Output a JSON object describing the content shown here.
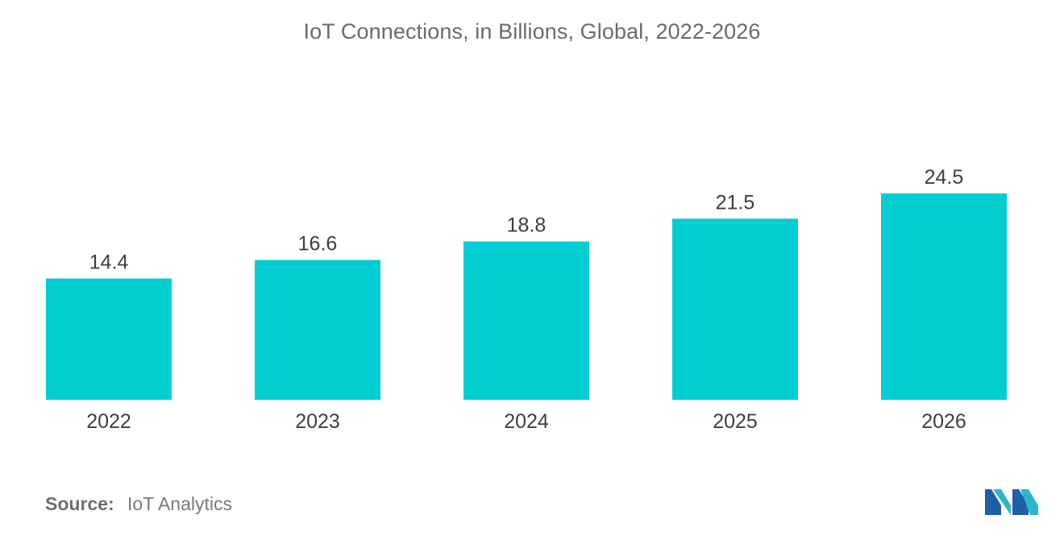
{
  "chart_data": {
    "type": "bar",
    "title": "IoT Connections, in Billions, Global, 2022-2026",
    "categories": [
      "2022",
      "2023",
      "2024",
      "2025",
      "2026"
    ],
    "values": [
      14.4,
      16.6,
      18.8,
      21.5,
      24.5
    ],
    "value_labels": [
      "14.4",
      "16.6",
      "18.8",
      "21.5",
      "24.5"
    ],
    "xlabel": "",
    "ylabel": "",
    "ylim": [
      0,
      24.5
    ],
    "grid": false,
    "bar_color": "#00ced1"
  },
  "source": {
    "label": "Source:",
    "text": "IoT Analytics"
  },
  "logo": {
    "icon": "mordor-intelligence-logo-icon",
    "colors": [
      "#1f5fa8",
      "#2ab7c9"
    ]
  }
}
